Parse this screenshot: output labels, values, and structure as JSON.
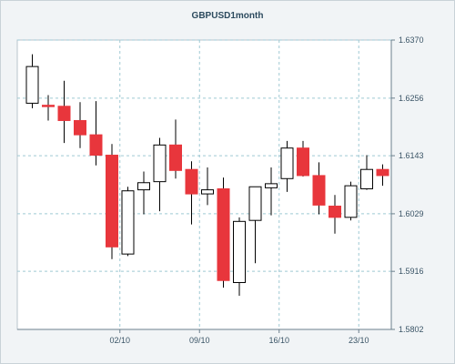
{
  "chart_data": {
    "type": "candlestick",
    "title": "GBPUSD1month",
    "xlabel": "",
    "ylabel": "",
    "ylim": [
      1.5802,
      1.637
    ],
    "y_ticks": [
      "1.6370",
      "1.6256",
      "1.6143",
      "1.6029",
      "1.5916",
      "1.5802"
    ],
    "y_tick_values": [
      1.637,
      1.6256,
      1.6143,
      1.6029,
      1.5916,
      1.5802
    ],
    "x_ticks": [
      "02/10",
      "09/10",
      "16/10",
      "23/10"
    ],
    "x_tick_index": [
      5.5,
      10.5,
      15.5,
      20.5
    ],
    "grid": true,
    "grid_style": "dashed",
    "legend": "none",
    "colors": {
      "up": "#ffffff",
      "down": "#e8363c",
      "wick": "#000000",
      "grid": "#9fc9d4",
      "background": "#ffffff"
    },
    "candles": [
      {
        "open": 1.6246,
        "high": 1.6342,
        "low": 1.6236,
        "close": 1.6318
      },
      {
        "open": 1.6242,
        "high": 1.6262,
        "low": 1.6212,
        "close": 1.624
      },
      {
        "open": 1.624,
        "high": 1.629,
        "low": 1.6168,
        "close": 1.6212
      },
      {
        "open": 1.6212,
        "high": 1.6248,
        "low": 1.6158,
        "close": 1.6184
      },
      {
        "open": 1.6184,
        "high": 1.625,
        "low": 1.6124,
        "close": 1.6144
      },
      {
        "open": 1.6144,
        "high": 1.6166,
        "low": 1.594,
        "close": 1.5964
      },
      {
        "open": 1.595,
        "high": 1.6082,
        "low": 1.5946,
        "close": 1.6074
      },
      {
        "open": 1.6076,
        "high": 1.6112,
        "low": 1.6028,
        "close": 1.609
      },
      {
        "open": 1.6092,
        "high": 1.6178,
        "low": 1.6034,
        "close": 1.6164
      },
      {
        "open": 1.6164,
        "high": 1.6214,
        "low": 1.6098,
        "close": 1.6114
      },
      {
        "open": 1.6116,
        "high": 1.6132,
        "low": 1.6008,
        "close": 1.6068
      },
      {
        "open": 1.6068,
        "high": 1.612,
        "low": 1.6046,
        "close": 1.6076
      },
      {
        "open": 1.6078,
        "high": 1.61,
        "low": 1.5884,
        "close": 1.5898
      },
      {
        "open": 1.5894,
        "high": 1.6022,
        "low": 1.5868,
        "close": 1.6014
      },
      {
        "open": 1.6016,
        "high": 1.6082,
        "low": 1.5932,
        "close": 1.6082
      },
      {
        "open": 1.608,
        "high": 1.612,
        "low": 1.6026,
        "close": 1.6088
      },
      {
        "open": 1.6098,
        "high": 1.6172,
        "low": 1.6072,
        "close": 1.6158
      },
      {
        "open": 1.6158,
        "high": 1.6172,
        "low": 1.6102,
        "close": 1.6104
      },
      {
        "open": 1.6104,
        "high": 1.613,
        "low": 1.6028,
        "close": 1.6046
      },
      {
        "open": 1.6044,
        "high": 1.6066,
        "low": 1.599,
        "close": 1.6022
      },
      {
        "open": 1.6022,
        "high": 1.6092,
        "low": 1.6016,
        "close": 1.6084
      },
      {
        "open": 1.6078,
        "high": 1.6144,
        "low": 1.6076,
        "close": 1.6116
      },
      {
        "open": 1.6116,
        "high": 1.6126,
        "low": 1.6084,
        "close": 1.6104
      }
    ]
  }
}
